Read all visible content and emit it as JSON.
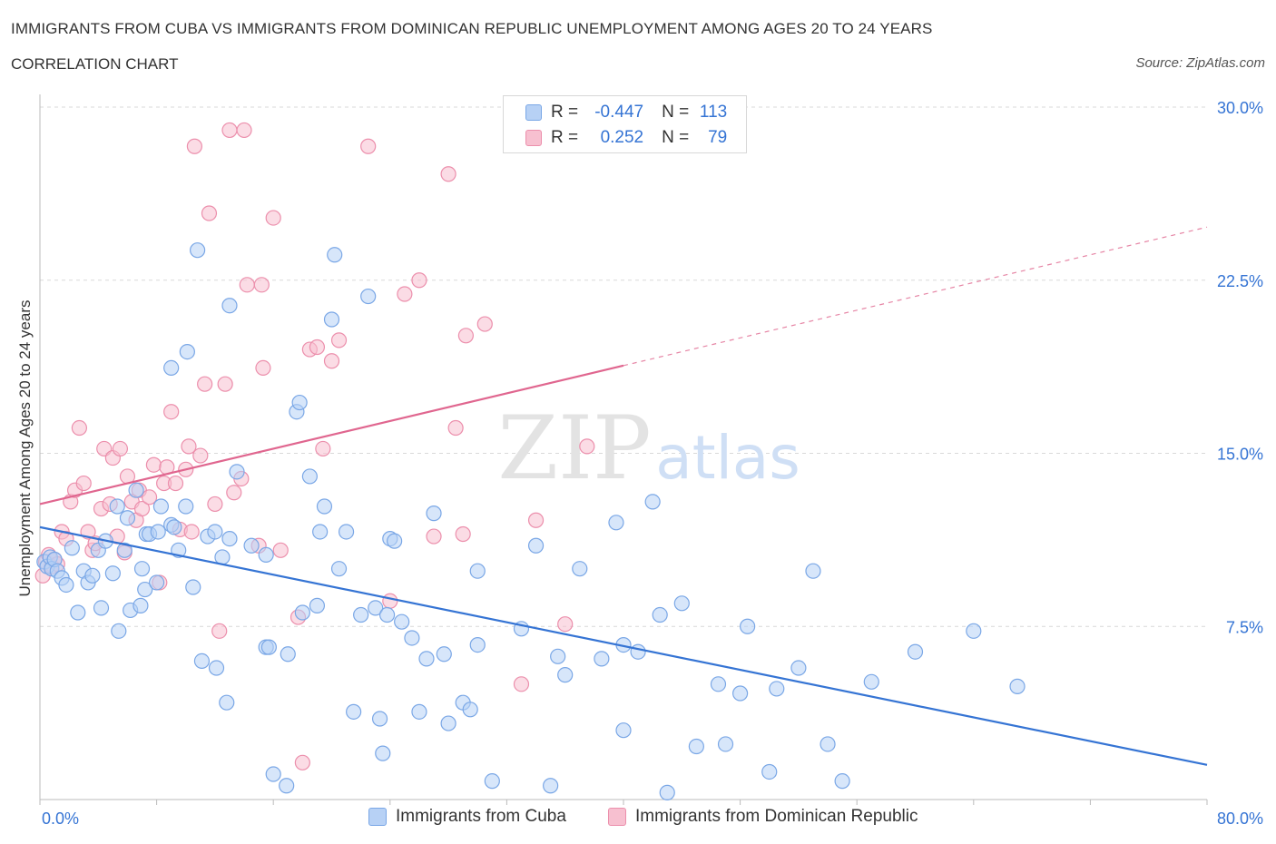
{
  "header": {
    "title": "IMMIGRANTS FROM CUBA VS IMMIGRANTS FROM DOMINICAN REPUBLIC UNEMPLOYMENT AMONG AGES 20 TO 24 YEARS",
    "subtitle": "CORRELATION CHART",
    "source": "Source: ZipAtlas.com"
  },
  "legend": {
    "r_label": "R =",
    "n_label": "N =",
    "cuba": {
      "r": "-0.447",
      "n": "113"
    },
    "dominican": {
      "r": "0.252",
      "n": "79"
    }
  },
  "watermark": {
    "zip": "ZIP",
    "atlas": "atlas"
  },
  "colors": {
    "cuba_fill": "#b7d1f5",
    "cuba_stroke": "#7aa7e6",
    "cuba_line": "#3574d4",
    "dom_fill": "#f7c0d0",
    "dom_stroke": "#ec8fac",
    "dom_line": "#e0668f",
    "grid": "#d9d9d9",
    "axis_text": "#3574d4"
  },
  "chart_data": {
    "type": "scatter",
    "title": "IMMIGRANTS FROM CUBA VS IMMIGRANTS FROM DOMINICAN REPUBLIC UNEMPLOYMENT AMONG AGES 20 TO 24 YEARS",
    "xlabel": "",
    "ylabel": "Unemployment Among Ages 20 to 24 years",
    "xlim": [
      0,
      80
    ],
    "ylim": [
      0,
      30
    ],
    "x_tick_labels": [
      "0.0%",
      "80.0%"
    ],
    "y_ticks": [
      7.5,
      15.0,
      22.5,
      30.0
    ],
    "y_tick_labels": [
      "7.5%",
      "15.0%",
      "22.5%",
      "30.0%"
    ],
    "grid": true,
    "legend_position": "top-center",
    "series": [
      {
        "name": "Immigrants from Cuba",
        "trend": {
          "x": [
            0,
            80
          ],
          "y": [
            11.8,
            1.5
          ]
        },
        "points": [
          [
            0.3,
            10.3
          ],
          [
            0.5,
            10.1
          ],
          [
            0.7,
            10.5
          ],
          [
            0.8,
            10.0
          ],
          [
            1.0,
            10.4
          ],
          [
            1.2,
            9.9
          ],
          [
            1.5,
            9.6
          ],
          [
            1.8,
            9.3
          ],
          [
            2.2,
            10.9
          ],
          [
            2.6,
            8.1
          ],
          [
            3.0,
            9.9
          ],
          [
            3.3,
            9.4
          ],
          [
            3.6,
            9.7
          ],
          [
            4.0,
            10.8
          ],
          [
            4.2,
            8.3
          ],
          [
            4.5,
            11.2
          ],
          [
            5.0,
            9.8
          ],
          [
            5.3,
            12.7
          ],
          [
            5.4,
            7.3
          ],
          [
            5.8,
            10.8
          ],
          [
            6.0,
            12.2
          ],
          [
            6.2,
            8.2
          ],
          [
            6.6,
            13.4
          ],
          [
            6.9,
            8.4
          ],
          [
            7.0,
            10.0
          ],
          [
            7.2,
            9.1
          ],
          [
            7.3,
            11.5
          ],
          [
            7.5,
            11.5
          ],
          [
            8.0,
            9.4
          ],
          [
            8.1,
            11.6
          ],
          [
            8.3,
            12.7
          ],
          [
            9.0,
            11.9
          ],
          [
            9.0,
            18.7
          ],
          [
            9.2,
            11.8
          ],
          [
            9.5,
            10.8
          ],
          [
            10.0,
            12.7
          ],
          [
            10.1,
            19.4
          ],
          [
            10.5,
            9.2
          ],
          [
            10.8,
            23.8
          ],
          [
            11.1,
            6.0
          ],
          [
            11.5,
            11.4
          ],
          [
            12.0,
            11.6
          ],
          [
            12.1,
            5.7
          ],
          [
            12.5,
            10.5
          ],
          [
            13.0,
            21.4
          ],
          [
            12.8,
            4.2
          ],
          [
            13.0,
            11.3
          ],
          [
            13.5,
            14.2
          ],
          [
            14.5,
            11.0
          ],
          [
            15.5,
            10.6
          ],
          [
            15.5,
            6.6
          ],
          [
            15.7,
            6.6
          ],
          [
            16.0,
            1.1
          ],
          [
            17.0,
            6.3
          ],
          [
            16.9,
            0.6
          ],
          [
            17.6,
            16.8
          ],
          [
            17.8,
            17.2
          ],
          [
            18.0,
            8.1
          ],
          [
            18.5,
            14.0
          ],
          [
            19.0,
            8.4
          ],
          [
            19.2,
            11.6
          ],
          [
            19.5,
            12.7
          ],
          [
            20.0,
            20.8
          ],
          [
            20.2,
            23.6
          ],
          [
            20.5,
            10.0
          ],
          [
            21.0,
            11.6
          ],
          [
            21.5,
            3.8
          ],
          [
            22.0,
            8.0
          ],
          [
            22.5,
            21.8
          ],
          [
            23.0,
            8.3
          ],
          [
            23.3,
            3.5
          ],
          [
            23.5,
            2.0
          ],
          [
            23.8,
            8.0
          ],
          [
            24.0,
            11.3
          ],
          [
            24.3,
            11.2
          ],
          [
            24.8,
            7.7
          ],
          [
            25.5,
            7.0
          ],
          [
            26.0,
            3.8
          ],
          [
            26.5,
            6.1
          ],
          [
            27.0,
            12.4
          ],
          [
            27.7,
            6.3
          ],
          [
            28.0,
            3.3
          ],
          [
            29.0,
            4.2
          ],
          [
            29.5,
            3.9
          ],
          [
            30.0,
            9.9
          ],
          [
            30.0,
            6.7
          ],
          [
            31.0,
            0.8
          ],
          [
            33.0,
            7.4
          ],
          [
            34.0,
            11.0
          ],
          [
            35.0,
            0.6
          ],
          [
            35.5,
            6.2
          ],
          [
            36.0,
            5.4
          ],
          [
            37.0,
            10.0
          ],
          [
            38.5,
            6.1
          ],
          [
            39.5,
            12.0
          ],
          [
            40.0,
            3.0
          ],
          [
            40.0,
            6.7
          ],
          [
            41.0,
            6.4
          ],
          [
            42.0,
            12.9
          ],
          [
            42.5,
            8.0
          ],
          [
            43.0,
            0.3
          ],
          [
            44.0,
            8.5
          ],
          [
            45.0,
            2.3
          ],
          [
            46.5,
            5.0
          ],
          [
            47.0,
            2.4
          ],
          [
            48.0,
            4.6
          ],
          [
            48.5,
            7.5
          ],
          [
            50.0,
            1.2
          ],
          [
            50.5,
            4.8
          ],
          [
            52.0,
            5.7
          ],
          [
            53.0,
            9.9
          ],
          [
            54.0,
            2.4
          ],
          [
            55.0,
            0.8
          ],
          [
            57.0,
            5.1
          ],
          [
            60.0,
            6.4
          ],
          [
            64.0,
            7.3
          ],
          [
            67.0,
            4.9
          ]
        ]
      },
      {
        "name": "Immigrants from Dominican Republic",
        "trend": {
          "x": [
            0,
            80
          ],
          "y": [
            12.8,
            24.8
          ]
        },
        "points": [
          [
            0.2,
            9.7
          ],
          [
            0.4,
            10.3
          ],
          [
            0.6,
            10.6
          ],
          [
            0.8,
            10.1
          ],
          [
            1.0,
            10.4
          ],
          [
            1.2,
            10.2
          ],
          [
            1.5,
            11.6
          ],
          [
            1.8,
            11.3
          ],
          [
            2.1,
            12.9
          ],
          [
            2.4,
            13.4
          ],
          [
            2.7,
            16.1
          ],
          [
            3.0,
            13.7
          ],
          [
            3.3,
            11.6
          ],
          [
            3.6,
            10.8
          ],
          [
            3.8,
            11.1
          ],
          [
            4.2,
            12.6
          ],
          [
            4.4,
            15.2
          ],
          [
            4.8,
            12.8
          ],
          [
            5.0,
            14.8
          ],
          [
            5.3,
            11.4
          ],
          [
            5.5,
            15.2
          ],
          [
            5.8,
            10.7
          ],
          [
            6.0,
            14.0
          ],
          [
            6.3,
            12.9
          ],
          [
            6.6,
            12.1
          ],
          [
            6.8,
            13.4
          ],
          [
            7.0,
            12.6
          ],
          [
            7.5,
            13.1
          ],
          [
            7.8,
            14.5
          ],
          [
            8.2,
            9.4
          ],
          [
            8.5,
            13.7
          ],
          [
            8.7,
            14.4
          ],
          [
            9.0,
            16.8
          ],
          [
            9.3,
            13.7
          ],
          [
            9.6,
            11.7
          ],
          [
            10.0,
            14.3
          ],
          [
            10.2,
            15.3
          ],
          [
            10.4,
            11.6
          ],
          [
            10.6,
            28.3
          ],
          [
            11.0,
            14.9
          ],
          [
            11.3,
            18.0
          ],
          [
            11.6,
            25.4
          ],
          [
            12.0,
            12.8
          ],
          [
            12.3,
            7.3
          ],
          [
            12.7,
            18.0
          ],
          [
            13.0,
            29.0
          ],
          [
            13.3,
            13.3
          ],
          [
            13.8,
            13.9
          ],
          [
            14.0,
            29.0
          ],
          [
            14.2,
            22.3
          ],
          [
            15.0,
            11.0
          ],
          [
            15.2,
            22.3
          ],
          [
            15.3,
            18.7
          ],
          [
            16.0,
            25.2
          ],
          [
            16.5,
            10.8
          ],
          [
            17.7,
            7.9
          ],
          [
            18.0,
            1.6
          ],
          [
            18.5,
            19.5
          ],
          [
            19.0,
            19.6
          ],
          [
            19.4,
            15.2
          ],
          [
            20.0,
            19.0
          ],
          [
            20.5,
            19.9
          ],
          [
            22.5,
            28.3
          ],
          [
            24.0,
            8.6
          ],
          [
            25.0,
            21.9
          ],
          [
            26.0,
            22.5
          ],
          [
            27.0,
            11.4
          ],
          [
            28.0,
            27.1
          ],
          [
            28.5,
            16.1
          ],
          [
            29.0,
            11.5
          ],
          [
            29.2,
            20.1
          ],
          [
            30.5,
            20.6
          ],
          [
            33.0,
            5.0
          ],
          [
            34.0,
            12.1
          ],
          [
            35.0,
            28.4
          ],
          [
            36.0,
            7.6
          ],
          [
            37.5,
            15.3
          ]
        ]
      }
    ]
  }
}
